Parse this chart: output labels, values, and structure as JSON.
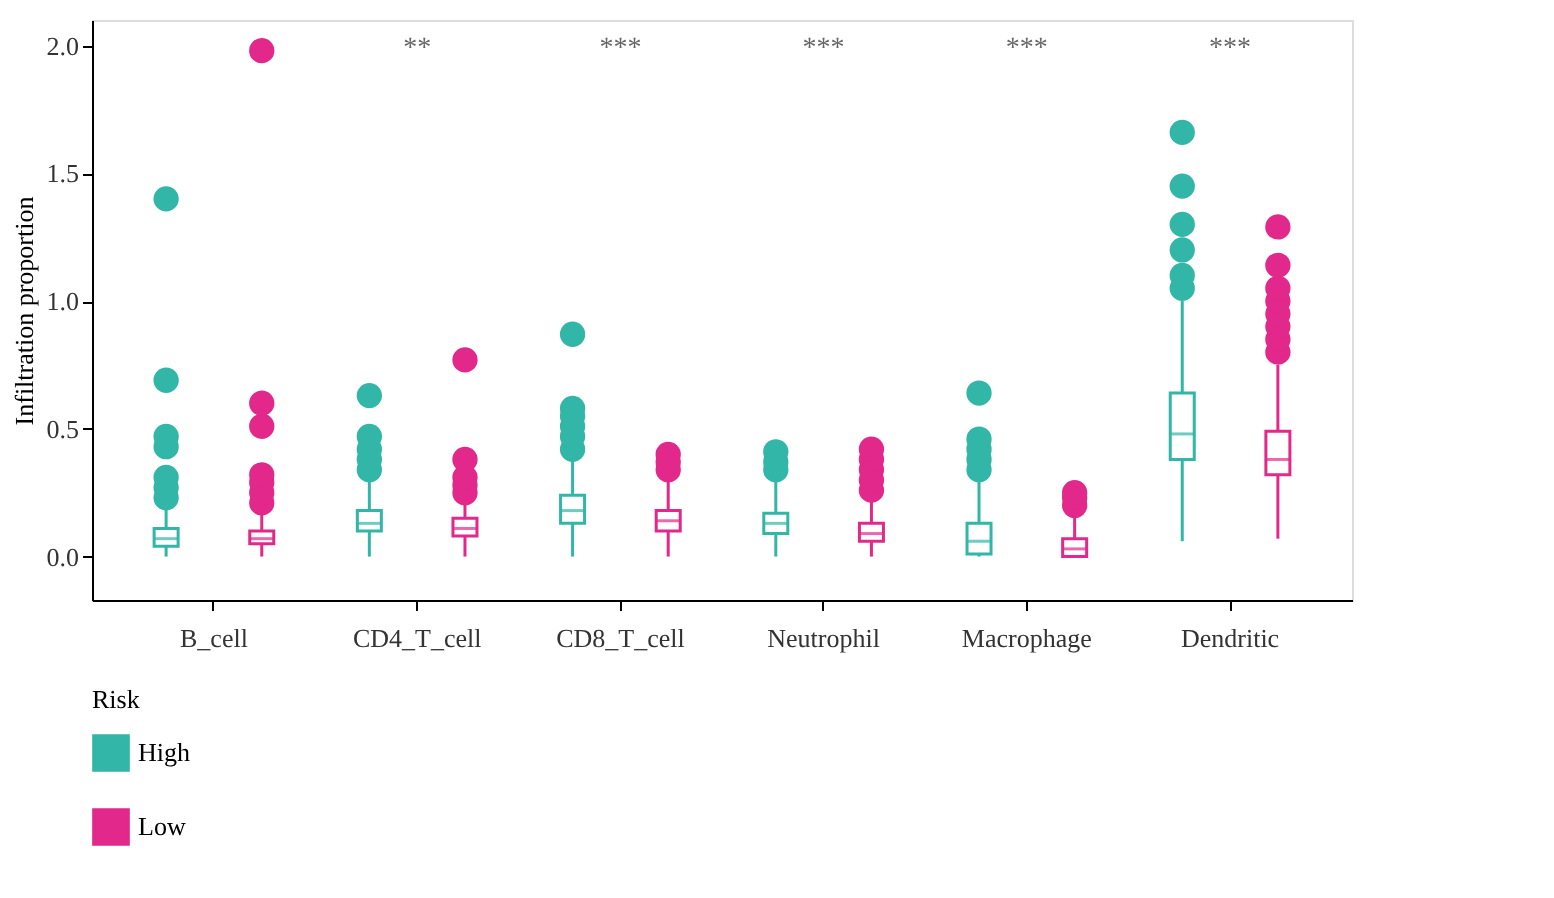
{
  "chart_data": {
    "type": "box",
    "ylabel": "Infiltration proportion",
    "legend_title": "Risk",
    "categories": [
      "B_cell",
      "CD4_T_cell",
      "CD8_T_cell",
      "Neutrophil",
      "Macrophage",
      "Dendritic"
    ],
    "ylim": [
      -0.17,
      2.1
    ],
    "yticks": [
      {
        "value": 0,
        "label": "0.0"
      },
      {
        "value": 0.5,
        "label": "0.5"
      },
      {
        "value": 1,
        "label": "1.0"
      },
      {
        "value": 1.5,
        "label": "1.5"
      },
      {
        "value": 2,
        "label": "2.0"
      }
    ],
    "grid": false,
    "legend": "bottom left",
    "series": [
      {
        "name": "High",
        "color": "#32b6a7",
        "boxes": [
          {
            "low": 0,
            "q1": 0.04,
            "median": 0.07,
            "q3": 0.11,
            "high": 0.2,
            "outliers": [
              0.23,
              0.27,
              0.31,
              0.43,
              0.47,
              0.69,
              1.4
            ]
          },
          {
            "low": 0,
            "q1": 0.1,
            "median": 0.13,
            "q3": 0.18,
            "high": 0.3,
            "outliers": [
              0.34,
              0.38,
              0.42,
              0.47,
              0.63
            ]
          },
          {
            "low": 0,
            "q1": 0.13,
            "median": 0.18,
            "q3": 0.24,
            "high": 0.4,
            "outliers": [
              0.42,
              0.47,
              0.51,
              0.55,
              0.58,
              0.87
            ]
          },
          {
            "low": 0,
            "q1": 0.09,
            "median": 0.13,
            "q3": 0.17,
            "high": 0.3,
            "outliers": [
              0.34,
              0.37,
              0.41
            ]
          },
          {
            "low": 0,
            "q1": 0.01,
            "median": 0.06,
            "q3": 0.13,
            "high": 0.3,
            "outliers": [
              0.34,
              0.38,
              0.42,
              0.46,
              0.64
            ]
          },
          {
            "low": 0.06,
            "q1": 0.38,
            "median": 0.48,
            "q3": 0.64,
            "high": 1.0,
            "outliers": [
              1.05,
              1.1,
              1.2,
              1.3,
              1.45,
              1.66
            ]
          }
        ]
      },
      {
        "name": "Low",
        "color": "#e2288a",
        "boxes": [
          {
            "low": 0,
            "q1": 0.05,
            "median": 0.07,
            "q3": 0.1,
            "high": 0.18,
            "outliers": [
              0.21,
              0.25,
              0.29,
              0.32,
              0.51,
              0.6,
              1.98
            ]
          },
          {
            "low": 0,
            "q1": 0.08,
            "median": 0.11,
            "q3": 0.15,
            "high": 0.22,
            "outliers": [
              0.25,
              0.28,
              0.31,
              0.38,
              0.77
            ]
          },
          {
            "low": 0,
            "q1": 0.1,
            "median": 0.14,
            "q3": 0.18,
            "high": 0.3,
            "outliers": [
              0.34,
              0.37,
              0.4
            ]
          },
          {
            "low": 0,
            "q1": 0.06,
            "median": 0.09,
            "q3": 0.13,
            "high": 0.22,
            "outliers": [
              0.26,
              0.3,
              0.34,
              0.38,
              0.42
            ]
          },
          {
            "low": 0,
            "q1": 0,
            "median": 0.03,
            "q3": 0.07,
            "high": 0.16,
            "outliers": [
              0.2,
              0.23,
              0.25
            ]
          },
          {
            "low": 0.07,
            "q1": 0.32,
            "median": 0.38,
            "q3": 0.49,
            "high": 0.75,
            "outliers": [
              0.8,
              0.85,
              0.9,
              0.95,
              1.0,
              1.05,
              1.14,
              1.29
            ]
          }
        ]
      }
    ],
    "annotations": [
      "**",
      "***",
      "***",
      "***",
      "***"
    ]
  }
}
